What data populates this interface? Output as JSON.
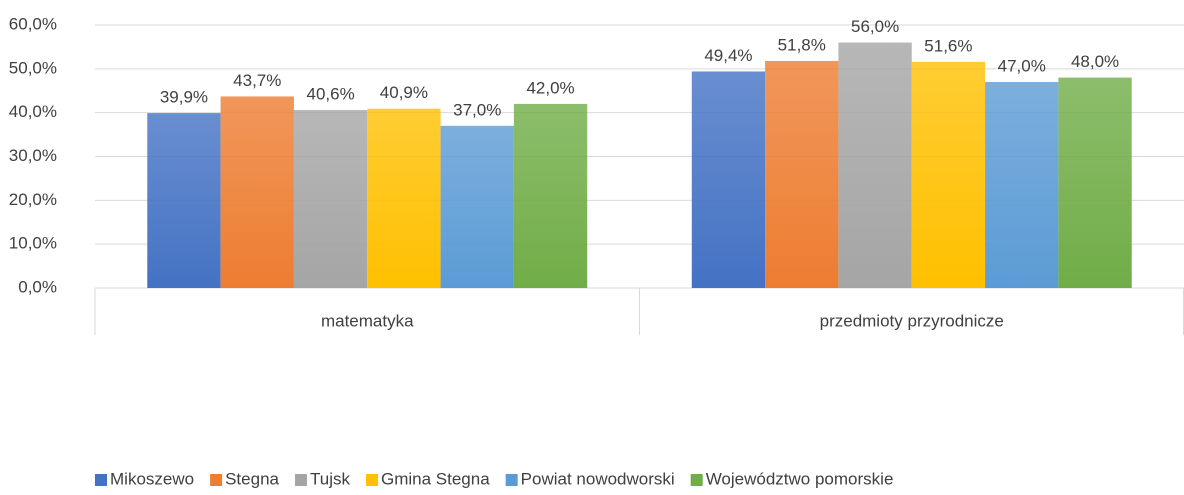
{
  "chart_data": {
    "type": "bar",
    "categories": [
      "matematyka",
      "przedmioty przyrodnicze"
    ],
    "series": [
      {
        "name": "Mikoszewo",
        "color": "#4472c4",
        "values": [
          39.9,
          49.4
        ],
        "value_labels": [
          "39,9%",
          "49,4%"
        ]
      },
      {
        "name": "Stegna",
        "color": "#ed7d31",
        "values": [
          43.7,
          51.8
        ],
        "value_labels": [
          "43,7%",
          "51,8%"
        ]
      },
      {
        "name": "Tujsk",
        "color": "#a5a5a5",
        "values": [
          40.6,
          56.0
        ],
        "value_labels": [
          "40,6%",
          "56,0%"
        ]
      },
      {
        "name": "Gmina Stegna",
        "color": "#ffc000",
        "values": [
          40.9,
          51.6
        ],
        "value_labels": [
          "40,9%",
          "51,6%"
        ]
      },
      {
        "name": "Powiat nowodworski",
        "color": "#5b9bd5",
        "values": [
          37.0,
          47.0
        ],
        "value_labels": [
          "37,0%",
          "47,0%"
        ]
      },
      {
        "name": "Województwo pomorskie",
        "color": "#70ad47",
        "values": [
          42.0,
          48.0
        ],
        "value_labels": [
          "42,0%",
          "48,0%"
        ]
      }
    ],
    "ylim": [
      0,
      60
    ],
    "yticks": [
      {
        "value": 0,
        "label": "0,0%"
      },
      {
        "value": 10,
        "label": "10,0%"
      },
      {
        "value": 20,
        "label": "20,0%"
      },
      {
        "value": 30,
        "label": "30,0%"
      },
      {
        "value": 40,
        "label": "40,0%"
      },
      {
        "value": 50,
        "label": "50,0%"
      },
      {
        "value": 60,
        "label": "60,0%"
      }
    ],
    "grid": true,
    "legend": "bottom"
  }
}
